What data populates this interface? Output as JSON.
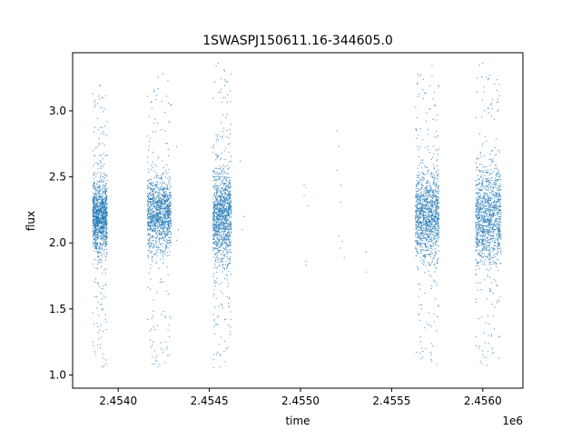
{
  "chart_data": {
    "type": "scatter",
    "title": "1SWASPJ150611.16-344605.0",
    "xlabel": "time",
    "ylabel": "flux",
    "x_offset_label": "1e6",
    "xlim": [
      2.45375,
      2.45622
    ],
    "ylim": [
      0.9,
      3.44
    ],
    "x_ticks": [
      2.454,
      2.4545,
      2.455,
      2.4555,
      2.456
    ],
    "x_tick_labels": [
      "2.4540",
      "2.4545",
      "2.4550",
      "2.4555",
      "2.4560"
    ],
    "y_ticks": [
      1.0,
      1.5,
      2.0,
      2.5,
      3.0
    ],
    "y_tick_labels": [
      "1.0",
      "1.5",
      "2.0",
      "2.5",
      "3.0"
    ],
    "grid": false,
    "marker_color": "#1f77b4",
    "series": [
      {
        "clusters": [
          {
            "x_range": [
              2.45386,
              2.45394
            ],
            "center": 2.2,
            "core_spread": 0.13,
            "y_range": [
              1.05,
              3.22
            ]
          },
          {
            "x_range": [
              2.45416,
              2.45429
            ],
            "center": 2.22,
            "core_spread": 0.14,
            "y_range": [
              1.06,
              3.3
            ]
          },
          {
            "x_range": [
              2.45452,
              2.45462
            ],
            "center": 2.2,
            "core_spread": 0.18,
            "y_range": [
              1.02,
              3.37
            ]
          },
          {
            "x_range": [
              2.45563,
              2.45576
            ],
            "center": 2.2,
            "core_spread": 0.16,
            "y_range": [
              1.07,
              3.34
            ]
          },
          {
            "x_range": [
              2.45596,
              2.4561
            ],
            "center": 2.2,
            "core_spread": 0.18,
            "y_range": [
              1.06,
              3.37
            ]
          }
        ],
        "sparse_points": [
          [
            2.45467,
            2.62
          ],
          [
            2.45468,
            2.1
          ],
          [
            2.45469,
            2.2
          ],
          [
            2.45502,
            2.44
          ],
          [
            2.45502,
            2.36
          ],
          [
            2.45503,
            1.86
          ],
          [
            2.45503,
            1.83
          ],
          [
            2.45504,
            2.28
          ],
          [
            2.45503,
            2.42
          ],
          [
            2.4552,
            2.85
          ],
          [
            2.45521,
            2.73
          ],
          [
            2.4552,
            2.55
          ],
          [
            2.45522,
            2.44
          ],
          [
            2.45522,
            2.31
          ],
          [
            2.45521,
            2.05
          ],
          [
            2.45522,
            1.96
          ],
          [
            2.45523,
            2.01
          ],
          [
            2.45524,
            1.89
          ],
          [
            2.45536,
            1.93
          ],
          [
            2.45536,
            1.78
          ],
          [
            2.45432,
            2.02
          ],
          [
            2.45433,
            2.1
          ],
          [
            2.45432,
            2.73
          ]
        ]
      }
    ]
  }
}
